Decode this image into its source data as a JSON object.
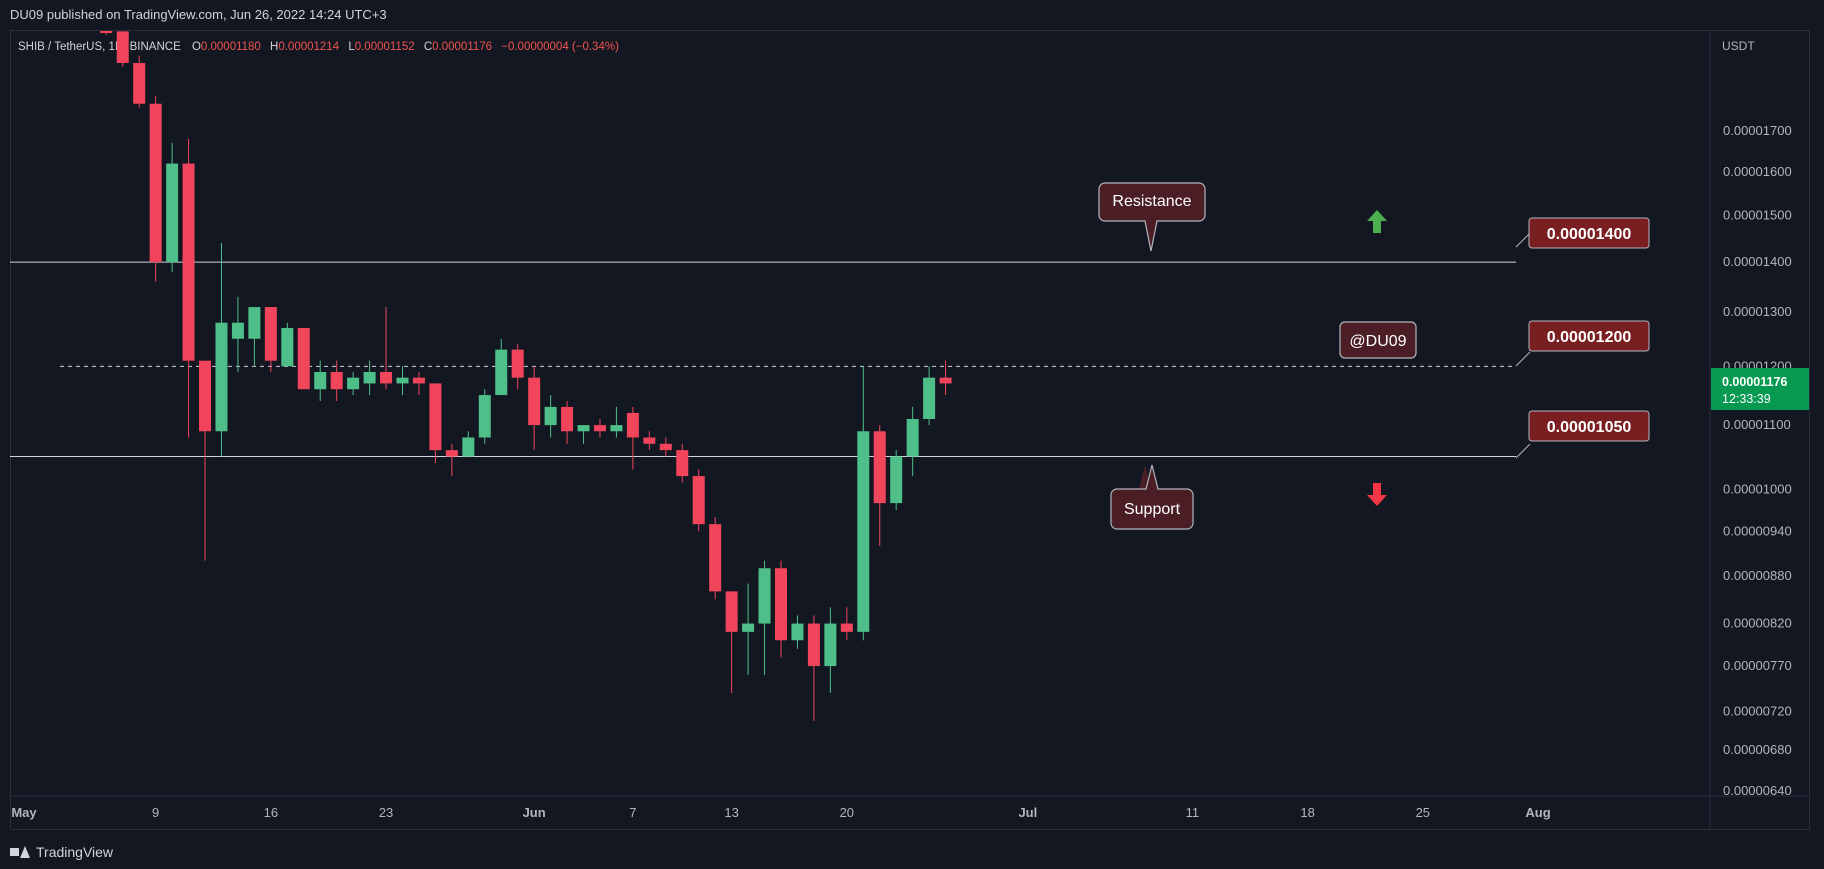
{
  "header": {
    "published": "DU09 published on TradingView.com, Jun 26, 2022 14:24 UTC+3"
  },
  "legend": {
    "symbol": "SHIB / TetherUS, 1D, BINANCE",
    "o_label": "O",
    "o_value": "0.00001180",
    "h_label": "H",
    "h_value": "0.00001214",
    "l_label": "L",
    "l_value": "0.00001152",
    "c_label": "C",
    "c_value": "0.00001176",
    "change": "−0.00000004 (−0.34%)"
  },
  "price_axis": {
    "currency": "USDT",
    "last_price": "0.00001176",
    "countdown": "12:33:39"
  },
  "annotations": {
    "resistance_label": "Resistance",
    "support_label": "Support",
    "author_tag": "@DU09",
    "level_1400": "0.00001400",
    "level_1200": "0.00001200",
    "level_1050": "0.00001050"
  },
  "footer": {
    "brand": "TradingView"
  },
  "colors": {
    "background": "#131722",
    "up": "#26a69a",
    "down": "#ef5350",
    "up_candle": "#4fbf8a",
    "down_candle": "#f0455a",
    "label_fill": "#7a1f21",
    "callout_fill": "#4a1e24",
    "arrow_up": "#4caf50",
    "arrow_down": "#f23645"
  },
  "chart_data": {
    "type": "candlestick",
    "symbol": "SHIB / TetherUS",
    "timeframe": "1D",
    "exchange": "BINANCE",
    "y_axis": {
      "scale": "log",
      "ticks": [
        "0.00001700",
        "0.00001600",
        "0.00001500",
        "0.00001400",
        "0.00001300",
        "0.00001200",
        "0.00001100",
        "0.00001000",
        "0.00000940",
        "0.00000880",
        "0.00000820",
        "0.00000770",
        "0.00000720",
        "0.00000680",
        "0.00000640"
      ],
      "range": [
        6.3e-06,
        1.9e-05
      ]
    },
    "x_axis": {
      "ticks": [
        {
          "label": "May",
          "date": "2022-05-01"
        },
        {
          "label": "9",
          "date": "2022-05-09"
        },
        {
          "label": "16",
          "date": "2022-05-16"
        },
        {
          "label": "23",
          "date": "2022-05-23"
        },
        {
          "label": "Jun",
          "date": "2022-06-01"
        },
        {
          "label": "7",
          "date": "2022-06-07"
        },
        {
          "label": "13",
          "date": "2022-06-13"
        },
        {
          "label": "20",
          "date": "2022-06-20"
        },
        {
          "label": "Jul",
          "date": "2022-07-01"
        },
        {
          "label": "11",
          "date": "2022-07-11"
        },
        {
          "label": "18",
          "date": "2022-07-18"
        },
        {
          "label": "25",
          "date": "2022-07-25"
        },
        {
          "label": "Aug",
          "date": "2022-08-01"
        }
      ],
      "range": [
        "2022-05-01",
        "2022-08-07"
      ]
    },
    "horizontal_lines": [
      {
        "price": 1.4e-05,
        "style": "solid"
      },
      {
        "price": 1.2e-05,
        "style": "dashed"
      },
      {
        "price": 1.05e-05,
        "style": "solid"
      }
    ],
    "candles": [
      {
        "date": "2022-05-06",
        "o": 1.99e-05,
        "h": 2.05e-05,
        "l": 1.96e-05,
        "c": 1.97e-05
      },
      {
        "date": "2022-05-07",
        "o": 1.97e-05,
        "h": 2.01e-05,
        "l": 1.87e-05,
        "c": 1.88e-05
      },
      {
        "date": "2022-05-08",
        "o": 1.88e-05,
        "h": 1.9e-05,
        "l": 1.76e-05,
        "c": 1.77e-05
      },
      {
        "date": "2022-05-09",
        "o": 1.77e-05,
        "h": 1.79e-05,
        "l": 1.36e-05,
        "c": 1.4e-05
      },
      {
        "date": "2022-05-10",
        "o": 1.4e-05,
        "h": 1.67e-05,
        "l": 1.38e-05,
        "c": 1.62e-05
      },
      {
        "date": "2022-05-11",
        "o": 1.62e-05,
        "h": 1.68e-05,
        "l": 1.08e-05,
        "c": 1.21e-05
      },
      {
        "date": "2022-05-12",
        "o": 1.21e-05,
        "h": 1.21e-05,
        "l": 9e-06,
        "c": 1.09e-05
      },
      {
        "date": "2022-05-13",
        "o": 1.09e-05,
        "h": 1.44e-05,
        "l": 1.05e-05,
        "c": 1.28e-05
      },
      {
        "date": "2022-05-14",
        "o": 1.25e-05,
        "h": 1.33e-05,
        "l": 1.19e-05,
        "c": 1.28e-05
      },
      {
        "date": "2022-05-15",
        "o": 1.25e-05,
        "h": 1.31e-05,
        "l": 1.2e-05,
        "c": 1.31e-05
      },
      {
        "date": "2022-05-16",
        "o": 1.31e-05,
        "h": 1.31e-05,
        "l": 1.19e-05,
        "c": 1.21e-05
      },
      {
        "date": "2022-05-17",
        "o": 1.2e-05,
        "h": 1.28e-05,
        "l": 1.2e-05,
        "c": 1.27e-05
      },
      {
        "date": "2022-05-18",
        "o": 1.27e-05,
        "h": 1.27e-05,
        "l": 1.16e-05,
        "c": 1.16e-05
      },
      {
        "date": "2022-05-19",
        "o": 1.16e-05,
        "h": 1.21e-05,
        "l": 1.14e-05,
        "c": 1.19e-05
      },
      {
        "date": "2022-05-20",
        "o": 1.19e-05,
        "h": 1.21e-05,
        "l": 1.14e-05,
        "c": 1.16e-05
      },
      {
        "date": "2022-05-21",
        "o": 1.16e-05,
        "h": 1.19e-05,
        "l": 1.15e-05,
        "c": 1.18e-05
      },
      {
        "date": "2022-05-22",
        "o": 1.17e-05,
        "h": 1.21e-05,
        "l": 1.15e-05,
        "c": 1.19e-05
      },
      {
        "date": "2022-05-23",
        "o": 1.19e-05,
        "h": 1.31e-05,
        "l": 1.16e-05,
        "c": 1.17e-05
      },
      {
        "date": "2022-05-24",
        "o": 1.17e-05,
        "h": 1.2e-05,
        "l": 1.15e-05,
        "c": 1.18e-05
      },
      {
        "date": "2022-05-25",
        "o": 1.18e-05,
        "h": 1.19e-05,
        "l": 1.15e-05,
        "c": 1.17e-05
      },
      {
        "date": "2022-05-26",
        "o": 1.17e-05,
        "h": 1.17e-05,
        "l": 1.04e-05,
        "c": 1.06e-05
      },
      {
        "date": "2022-05-27",
        "o": 1.06e-05,
        "h": 1.07e-05,
        "l": 1.02e-05,
        "c": 1.05e-05
      },
      {
        "date": "2022-05-28",
        "o": 1.05e-05,
        "h": 1.09e-05,
        "l": 1.05e-05,
        "c": 1.08e-05
      },
      {
        "date": "2022-05-29",
        "o": 1.08e-05,
        "h": 1.16e-05,
        "l": 1.07e-05,
        "c": 1.15e-05
      },
      {
        "date": "2022-05-30",
        "o": 1.15e-05,
        "h": 1.25e-05,
        "l": 1.15e-05,
        "c": 1.23e-05
      },
      {
        "date": "2022-05-31",
        "o": 1.23e-05,
        "h": 1.24e-05,
        "l": 1.16e-05,
        "c": 1.18e-05
      },
      {
        "date": "2022-06-01",
        "o": 1.18e-05,
        "h": 1.2e-05,
        "l": 1.06e-05,
        "c": 1.1e-05
      },
      {
        "date": "2022-06-02",
        "o": 1.1e-05,
        "h": 1.15e-05,
        "l": 1.08e-05,
        "c": 1.13e-05
      },
      {
        "date": "2022-06-03",
        "o": 1.13e-05,
        "h": 1.14e-05,
        "l": 1.07e-05,
        "c": 1.09e-05
      },
      {
        "date": "2022-06-04",
        "o": 1.09e-05,
        "h": 1.1e-05,
        "l": 1.07e-05,
        "c": 1.1e-05
      },
      {
        "date": "2022-06-05",
        "o": 1.1e-05,
        "h": 1.11e-05,
        "l": 1.08e-05,
        "c": 1.09e-05
      },
      {
        "date": "2022-06-06",
        "o": 1.09e-05,
        "h": 1.13e-05,
        "l": 1.08e-05,
        "c": 1.1e-05
      },
      {
        "date": "2022-06-07",
        "o": 1.12e-05,
        "h": 1.13e-05,
        "l": 1.03e-05,
        "c": 1.08e-05
      },
      {
        "date": "2022-06-08",
        "o": 1.08e-05,
        "h": 1.09e-05,
        "l": 1.06e-05,
        "c": 1.07e-05
      },
      {
        "date": "2022-06-09",
        "o": 1.07e-05,
        "h": 1.08e-05,
        "l": 1.05e-05,
        "c": 1.06e-05
      },
      {
        "date": "2022-06-10",
        "o": 1.06e-05,
        "h": 1.07e-05,
        "l": 1.01e-05,
        "c": 1.02e-05
      },
      {
        "date": "2022-06-11",
        "o": 1.02e-05,
        "h": 1.03e-05,
        "l": 9.4e-06,
        "c": 9.5e-06
      },
      {
        "date": "2022-06-12",
        "o": 9.5e-06,
        "h": 9.6e-06,
        "l": 8.5e-06,
        "c": 8.6e-06
      },
      {
        "date": "2022-06-13",
        "o": 8.6e-06,
        "h": 8.6e-06,
        "l": 7.4e-06,
        "c": 8.1e-06
      },
      {
        "date": "2022-06-14",
        "o": 8.1e-06,
        "h": 8.7e-06,
        "l": 7.6e-06,
        "c": 8.2e-06
      },
      {
        "date": "2022-06-15",
        "o": 8.2e-06,
        "h": 9e-06,
        "l": 7.6e-06,
        "c": 8.9e-06
      },
      {
        "date": "2022-06-16",
        "o": 8.9e-06,
        "h": 9e-06,
        "l": 7.8e-06,
        "c": 8e-06
      },
      {
        "date": "2022-06-17",
        "o": 8e-06,
        "h": 8.3e-06,
        "l": 7.9e-06,
        "c": 8.2e-06
      },
      {
        "date": "2022-06-18",
        "o": 8.2e-06,
        "h": 8.3e-06,
        "l": 7.1e-06,
        "c": 7.7e-06
      },
      {
        "date": "2022-06-19",
        "o": 7.7e-06,
        "h": 8.4e-06,
        "l": 7.4e-06,
        "c": 8.2e-06
      },
      {
        "date": "2022-06-20",
        "o": 8.2e-06,
        "h": 8.4e-06,
        "l": 8e-06,
        "c": 8.1e-06
      },
      {
        "date": "2022-06-21",
        "o": 8.1e-06,
        "h": 1.2e-05,
        "l": 8e-06,
        "c": 1.09e-05
      },
      {
        "date": "2022-06-22",
        "o": 1.09e-05,
        "h": 1.1e-05,
        "l": 9.2e-06,
        "c": 9.8e-06
      },
      {
        "date": "2022-06-23",
        "o": 9.8e-06,
        "h": 1.06e-05,
        "l": 9.7e-06,
        "c": 1.05e-05
      },
      {
        "date": "2022-06-24",
        "o": 1.05e-05,
        "h": 1.13e-05,
        "l": 1.02e-05,
        "c": 1.11e-05
      },
      {
        "date": "2022-06-25",
        "o": 1.11e-05,
        "h": 1.2e-05,
        "l": 1.1e-05,
        "c": 1.18e-05
      },
      {
        "date": "2022-06-26",
        "o": 1.18e-05,
        "h": 1.21e-05,
        "l": 1.15e-05,
        "c": 1.17e-05
      }
    ]
  }
}
